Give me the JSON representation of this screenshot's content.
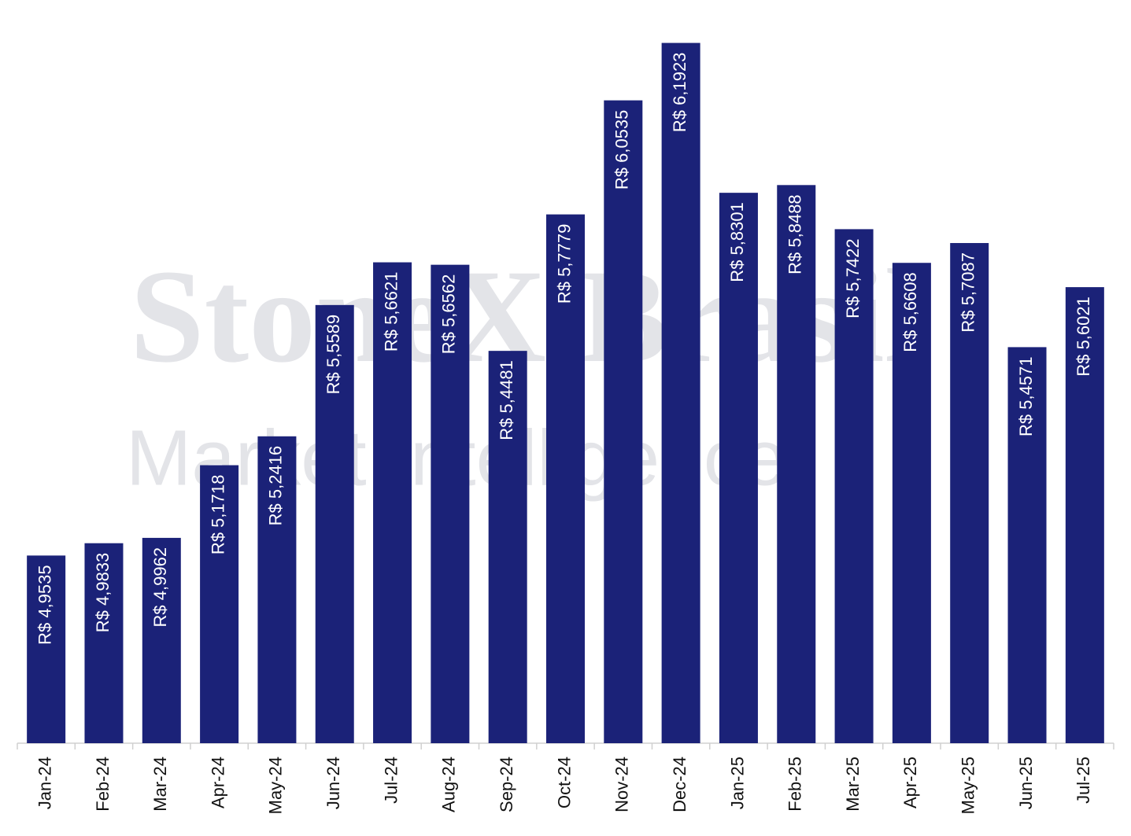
{
  "chart_data": {
    "type": "bar",
    "watermark": [
      "StoneX Brasil",
      "Market Intelligence"
    ],
    "categories": [
      "Jan-24",
      "Feb-24",
      "Mar-24",
      "Apr-24",
      "May-24",
      "Jun-24",
      "Jul-24",
      "Aug-24",
      "Sep-24",
      "Oct-24",
      "Nov-24",
      "Dec-24",
      "Jan-25",
      "Feb-25",
      "Mar-25",
      "Apr-25",
      "May-25",
      "Jun-25",
      "Jul-25"
    ],
    "values": [
      4.9535,
      4.9833,
      4.9962,
      5.1718,
      5.2416,
      5.5589,
      5.6621,
      5.6562,
      5.4481,
      5.7779,
      6.0535,
      6.1923,
      5.8301,
      5.8488,
      5.7422,
      5.6608,
      5.7087,
      5.4571,
      5.6021
    ],
    "value_labels": [
      "R$ 4,9535",
      "R$ 4,9833",
      "R$ 4,9962",
      "R$ 5,1718",
      "R$ 5,2416",
      "R$ 5,5589",
      "R$ 5,6621",
      "R$ 5,6562",
      "R$ 5,4481",
      "R$ 5,7779",
      "R$ 6,0535",
      "R$ 6,1923",
      "R$ 5,8301",
      "R$ 5,8488",
      "R$ 5,7422",
      "R$ 5,6608",
      "R$ 5,7087",
      "R$ 5,4571",
      "R$ 5,6021"
    ],
    "color": "#1b2278",
    "ylim": [
      4.5,
      6.22
    ]
  }
}
